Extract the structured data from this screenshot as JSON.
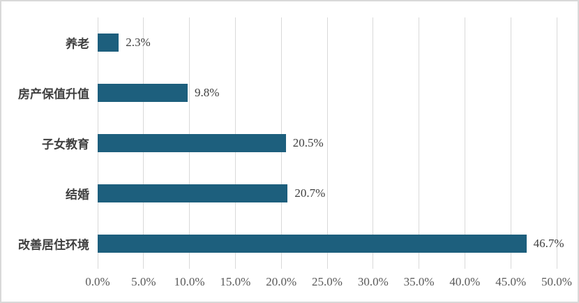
{
  "chart_data": {
    "type": "bar",
    "orientation": "horizontal",
    "title": "",
    "xlabel": "",
    "ylabel": "",
    "categories": [
      "养老",
      "房产保值升值",
      "子女教育",
      "结婚",
      "改善居住环境"
    ],
    "values": [
      2.3,
      9.8,
      20.5,
      20.7,
      46.7
    ],
    "value_labels": [
      "2.3%",
      "9.8%",
      "20.5%",
      "20.7%",
      "46.7%"
    ],
    "x_tick_values": [
      0,
      5,
      10,
      15,
      20,
      25,
      30,
      35,
      40,
      45,
      50
    ],
    "x_tick_labels": [
      "0.0%",
      "5.0%",
      "10.0%",
      "15.0%",
      "20.0%",
      "25.0%",
      "30.0%",
      "35.0%",
      "40.0%",
      "45.0%",
      "50.0%"
    ],
    "xlim": [
      0,
      50
    ],
    "grid": "vertical",
    "legend": "none"
  },
  "colors": {
    "bar": "#1d5f7d",
    "gridline": "#d9d9d9",
    "frame_border": "#d9d9d9",
    "category_text": "#404040",
    "value_text": "#404040",
    "tick_text": "#595959",
    "background": "#ffffff"
  }
}
